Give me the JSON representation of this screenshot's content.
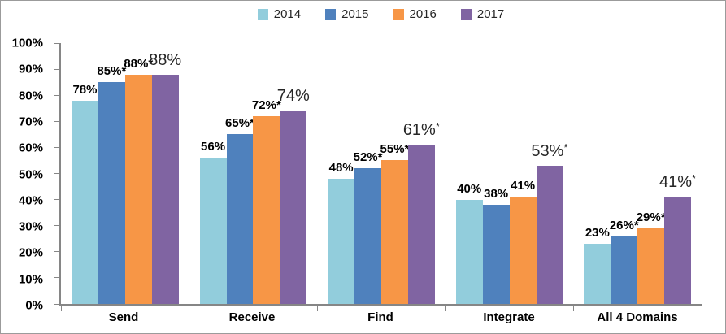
{
  "chart_data": {
    "type": "bar",
    "title": "",
    "xlabel": "",
    "ylabel": "",
    "ylim": [
      0,
      100
    ],
    "grid": false,
    "legend_position": "top",
    "axis_color": "#868686",
    "categories": [
      "Send",
      "Receive",
      "Find",
      "Integrate",
      "All 4 Domains"
    ],
    "y_ticks": [
      "100%",
      "90%",
      "80%",
      "70%",
      "60%",
      "50%",
      "40%",
      "30%",
      "20%",
      "10%",
      "0%"
    ],
    "series": [
      {
        "name": "2014",
        "color": "#92CDDC",
        "values": [
          78,
          56,
          48,
          40,
          23
        ],
        "labels": [
          "78%",
          "56%",
          "48%",
          "40%",
          "23%"
        ],
        "label_style": "small-bold"
      },
      {
        "name": "2015",
        "color": "#4F81BD",
        "values": [
          85,
          65,
          52,
          38,
          26
        ],
        "labels": [
          "85%*",
          "65%*",
          "52%*",
          "38%",
          "26%*"
        ],
        "label_style": "small-bold"
      },
      {
        "name": "2016",
        "color": "#F79646",
        "values": [
          88,
          72,
          55,
          41,
          29
        ],
        "labels": [
          "88%*",
          "72%*",
          "55%*",
          "41%",
          "29%*"
        ],
        "label_style": "small-bold"
      },
      {
        "name": "2017",
        "color": "#8064A2",
        "values": [
          88,
          74,
          61,
          53,
          41
        ],
        "labels": [
          "88%",
          "74%",
          "61%*",
          "53%*",
          "41%*"
        ],
        "label_style": "large"
      }
    ]
  }
}
